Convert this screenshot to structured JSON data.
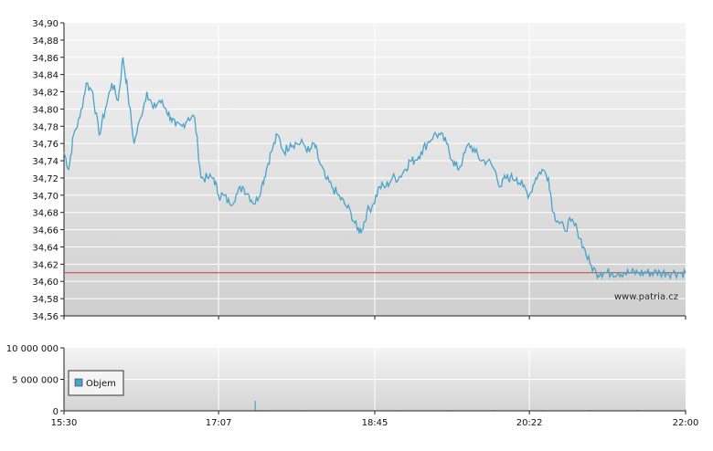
{
  "chart_data": [
    {
      "type": "line",
      "panel": "price",
      "watermark": "www.patria.cz",
      "colors": {
        "line": "#4aa3c8",
        "reference": "#c84040",
        "background_top": "#f2f2f2",
        "background_bottom": "#d2d2d2",
        "grid": "#ffffff"
      },
      "ylim": [
        34.56,
        34.9
      ],
      "y_ticks": [
        "34,90",
        "34,88",
        "34,86",
        "34,84",
        "34,82",
        "34,80",
        "34,78",
        "34,76",
        "34,74",
        "34,72",
        "34,70",
        "34,68",
        "34,66",
        "34,64",
        "34,62",
        "34,60",
        "34,58",
        "34,56"
      ],
      "reference_line": 34.61,
      "grid": true,
      "series": [
        {
          "x": [
            "15:30",
            "15:33",
            "15:36",
            "15:40",
            "15:44",
            "15:48",
            "15:52",
            "15:56",
            "16:00",
            "16:04",
            "16:07",
            "16:10",
            "16:14",
            "16:18",
            "16:22",
            "16:26",
            "16:30",
            "16:34",
            "16:37",
            "16:40",
            "16:44",
            "16:48",
            "16:52",
            "16:56",
            "17:00",
            "17:04",
            "17:07",
            "17:10",
            "17:14",
            "17:18",
            "17:22",
            "17:26",
            "17:30",
            "17:34",
            "17:37",
            "17:40",
            "17:44",
            "17:48",
            "17:52",
            "17:56",
            "18:00",
            "18:04",
            "18:07",
            "18:10",
            "18:14",
            "18:18",
            "18:22",
            "18:26",
            "18:30",
            "18:34",
            "18:37",
            "18:40",
            "18:44",
            "18:48",
            "18:52",
            "18:56",
            "19:00",
            "19:04",
            "19:07",
            "19:10",
            "19:14",
            "19:18",
            "19:22",
            "19:26",
            "19:30",
            "19:34",
            "19:37",
            "19:40",
            "19:44",
            "19:48",
            "19:52",
            "19:56",
            "20:00",
            "20:04",
            "20:07",
            "20:10",
            "20:14",
            "20:18",
            "20:22",
            "20:26",
            "20:30",
            "20:34",
            "20:37",
            "20:40",
            "20:44",
            "20:48",
            "20:52",
            "20:56",
            "21:00",
            "21:04",
            "21:07",
            "21:10",
            "21:14",
            "21:18",
            "21:22",
            "21:26",
            "21:30",
            "21:34",
            "21:37",
            "21:40",
            "21:44",
            "21:48",
            "21:52",
            "21:56",
            "22:00"
          ],
          "values": [
            34.75,
            34.73,
            34.77,
            34.79,
            34.83,
            34.82,
            34.77,
            34.8,
            34.83,
            34.81,
            34.86,
            34.82,
            34.76,
            34.79,
            34.82,
            34.8,
            34.81,
            34.8,
            34.79,
            34.78,
            34.78,
            34.79,
            34.79,
            34.72,
            34.72,
            34.72,
            34.7,
            34.7,
            34.69,
            34.7,
            34.71,
            34.7,
            34.69,
            34.71,
            34.73,
            34.75,
            34.77,
            34.75,
            34.76,
            34.76,
            34.76,
            34.75,
            34.76,
            34.74,
            34.72,
            34.71,
            34.7,
            34.69,
            34.68,
            34.66,
            34.66,
            34.68,
            34.69,
            34.71,
            34.71,
            34.72,
            34.72,
            34.73,
            34.74,
            34.74,
            34.75,
            34.76,
            34.77,
            34.77,
            34.76,
            34.74,
            34.73,
            34.74,
            34.76,
            34.75,
            34.74,
            34.74,
            34.73,
            34.71,
            34.72,
            34.72,
            34.72,
            34.71,
            34.7,
            34.72,
            34.73,
            34.72,
            34.68,
            34.67,
            34.66,
            34.67,
            34.66,
            34.64,
            34.62,
            34.61,
            34.61,
            34.61,
            34.61,
            34.61,
            34.61,
            34.61,
            34.61,
            34.61,
            34.61,
            34.61,
            34.61,
            34.61,
            34.61,
            34.61,
            34.61
          ]
        }
      ]
    },
    {
      "type": "bar",
      "panel": "volume",
      "ylim": [
        0,
        10000000
      ],
      "y_ticks": [
        "10 000 000",
        "5 000 000",
        "0"
      ],
      "x_ticks": [
        "15:30",
        "17:07",
        "18:45",
        "20:22",
        "22:00"
      ],
      "legend": {
        "label": "Objem",
        "color": "#4aa3c8",
        "position": "left"
      },
      "grid": true,
      "series": [
        {
          "name": "Objem",
          "x": [
            "15:30",
            "16:00",
            "16:30",
            "17:00",
            "17:30",
            "17:35",
            "18:00",
            "18:30",
            "19:00",
            "19:30",
            "20:00",
            "20:30",
            "21:00",
            "21:30",
            "22:00"
          ],
          "values": [
            120000,
            90000,
            80000,
            70000,
            1600000,
            150000,
            110000,
            100000,
            120000,
            110000,
            130000,
            120000,
            140000,
            160000,
            200000
          ]
        }
      ]
    }
  ]
}
